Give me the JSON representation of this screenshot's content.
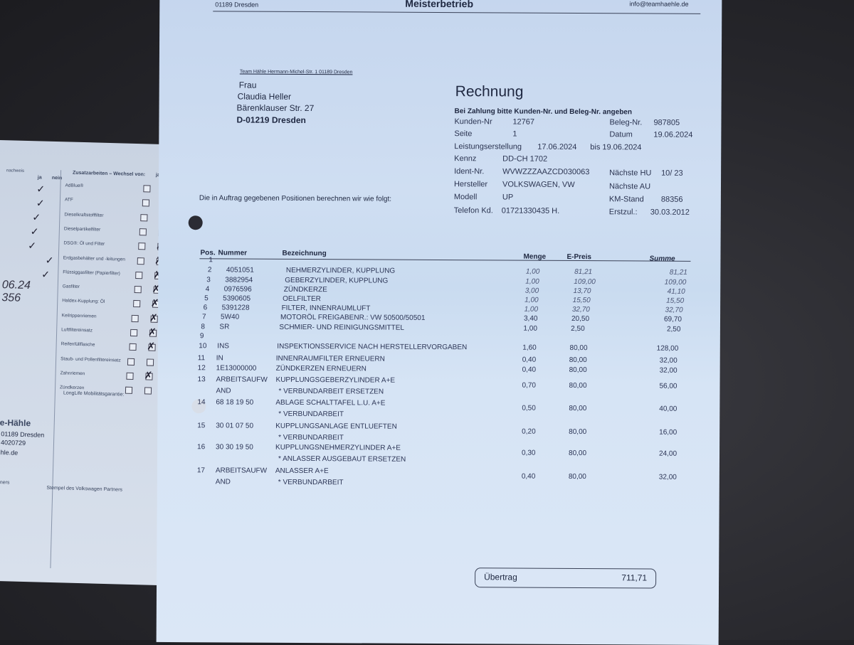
{
  "checklist_card": {
    "left_header_fragment": "nachweis",
    "left_columns": [
      "ja",
      "nein"
    ],
    "right_header": "Zusatzarbeiten – Wechsel von:",
    "right_column": "ja",
    "items": [
      "AdBlue®",
      "ATF",
      "Dieselkraftstofffilter",
      "Dieselpartikelfilter",
      "DSG®: Öl und Filter",
      "Erdgasbehälter und -leitungen",
      "Flüssiggasfilter (Papierfilter)",
      "Gasfilter",
      "Haldex-Kupplung: Öl",
      "Keilrippenriemen",
      "Luftfiltereinsatz",
      "Reifenfüllflasche",
      "Staub- und Pollenfiltereinsatz",
      "Zahnriemen",
      "Zündkerzen"
    ],
    "handwritten": [
      "06.24",
      "356"
    ],
    "longlife": "LongLife Mobilitätsgarantie:",
    "stamp_label": "Stempel des Volkswagen Partners",
    "stamp_brand": "e-Hähle",
    "stamp_lines": [
      "01189 Dresden",
      "4020729",
      "hle.de"
    ],
    "partners_fragment": "rtners"
  },
  "invoice": {
    "header": {
      "left": "01189 Dresden",
      "center": "Meisterbetrieb",
      "right": "info@teamhaehle.de"
    },
    "sender_line": "Team Hähle  Hermann-Michel-Str. 1  01189 Dresden",
    "recipient": [
      "Frau",
      "Claudia Heller",
      "Bärenklauser Str. 27",
      "D-01219 Dresden"
    ],
    "title": "Rechnung",
    "payment_note": "Bei Zahlung bitte Kunden-Nr. und Beleg-Nr. angeben",
    "fields": {
      "kunden_nr": {
        "label": "Kunden-Nr",
        "value": "12767"
      },
      "beleg_nr": {
        "label": "Beleg-Nr.",
        "value": "987805"
      },
      "seite": {
        "label": "Seite",
        "value": "1"
      },
      "datum": {
        "label": "Datum",
        "value": "19.06.2024"
      },
      "leistung": {
        "label": "Leistungserstellung",
        "value": "17.06.2024",
        "bis": "bis 19.06.2024"
      },
      "kennz": {
        "label": "Kennz",
        "value": "DD-CH 1702"
      },
      "ident": {
        "label": "Ident-Nr.",
        "value": "WVWZZZAAZCD030063"
      },
      "hu": {
        "label": "Nächste HU",
        "value": "10/ 23"
      },
      "hersteller": {
        "label": "Hersteller",
        "value": "VOLKSWAGEN, VW"
      },
      "au": {
        "label": "Nächste AU",
        "value": ""
      },
      "modell": {
        "label": "Modell",
        "value": "UP"
      },
      "km": {
        "label": "KM-Stand",
        "value": "88356"
      },
      "telefon": {
        "label": "Telefon Kd.",
        "value": "01721330435 H."
      },
      "erstzul": {
        "label": "Erstzul.:",
        "value": "30.03.2012"
      }
    },
    "intro": "Die in Auftrag gegebenen Positionen berechnen wir wie folgt:",
    "columns": {
      "pos": "Pos.",
      "nummer": "Nummer",
      "bezeichnung": "Bezeichnung",
      "menge": "Menge",
      "epreis": "E-Preis",
      "summe": "Summe"
    },
    "rows": [
      {
        "pos": "1",
        "nummer": "",
        "bez": "",
        "bez2": "",
        "nummer2": "",
        "menge": "",
        "epreis": "",
        "summe": ""
      },
      {
        "pos": "2",
        "nummer": "4051051",
        "bez": "NEHMERZYLINDER, KUPPLUNG",
        "menge": "1,00",
        "epreis": "81,21",
        "summe": "81,21"
      },
      {
        "pos": "3",
        "nummer": "3882954",
        "bez": "GEBERZYLINDER, KUPPLUNG",
        "menge": "1,00",
        "epreis": "109,00",
        "summe": "109,00"
      },
      {
        "pos": "4",
        "nummer": "0976596",
        "bez": "ZÜNDKERZE",
        "menge": "3,00",
        "epreis": "13,70",
        "summe": "41,10"
      },
      {
        "pos": "5",
        "nummer": "5390605",
        "bez": "OELFILTER",
        "menge": "1,00",
        "epreis": "15,50",
        "summe": "15,50"
      },
      {
        "pos": "6",
        "nummer": "5391228",
        "bez": "FILTER, INNENRAUMLUFT",
        "menge": "1,00",
        "epreis": "32,70",
        "summe": "32,70"
      },
      {
        "pos": "7",
        "nummer": "5W40",
        "bez": "MOTORÖL FREIGABENR.: VW 50500/50501",
        "menge": "3,40",
        "epreis": "20,50",
        "summe": "69,70"
      },
      {
        "pos": "8",
        "nummer": "SR",
        "bez": "SCHMIER- UND REINIGUNGSMITTEL",
        "menge": "1,00",
        "epreis": "2,50",
        "summe": "2,50"
      },
      {
        "pos": "9",
        "nummer": "",
        "bez": "",
        "menge": "",
        "epreis": "",
        "summe": ""
      },
      {
        "pos": "10",
        "nummer": "INS",
        "bez": "INSPEKTIONSSERVICE NACH HERSTELLERVORGABEN",
        "menge": "1,60",
        "epreis": "80,00",
        "summe": "128,00"
      },
      {
        "pos": "11",
        "nummer": "IN",
        "bez": "INNENRAUMFILTER ERNEUERN",
        "menge": "0,40",
        "epreis": "80,00",
        "summe": "32,00"
      },
      {
        "pos": "12",
        "nummer": "1E13000000",
        "bez": "ZÜNDKERZEN ERNEUERN",
        "menge": "0,40",
        "epreis": "80,00",
        "summe": "32,00"
      },
      {
        "pos": "13",
        "nummer": "ARBEITSAUFW",
        "bez": "KUPPLUNGSGEBERZYLINDER A+E",
        "nummer2": "AND",
        "bez2": "* VERBUNDARBEIT ERSETZEN",
        "menge": "0,70",
        "epreis": "80,00",
        "summe": "56,00"
      },
      {
        "pos": "14",
        "nummer": "68 18 19 50",
        "bez": "ABLAGE SCHALTTAFEL L.U. A+E",
        "bez2": "* VERBUNDARBEIT",
        "menge": "0,50",
        "epreis": "80,00",
        "summe": "40,00"
      },
      {
        "pos": "15",
        "nummer": "30 01 07 50",
        "bez": "KUPPLUNGSANLAGE ENTLUEFTEN",
        "bez2": "* VERBUNDARBEIT",
        "menge": "0,20",
        "epreis": "80,00",
        "summe": "16,00"
      },
      {
        "pos": "16",
        "nummer": "30 30 19 50",
        "bez": "KUPPLUNGSNEHMERZYLINDER A+E",
        "bez2": "* ANLASSER AUSGEBAUT ERSETZEN",
        "menge": "0,30",
        "epreis": "80,00",
        "summe": "24,00"
      },
      {
        "pos": "17",
        "nummer": "ARBEITSAUFW",
        "bez": "ANLASSER A+E",
        "nummer2": "AND",
        "bez2": "* VERBUNDARBEIT",
        "menge": "0,40",
        "epreis": "80,00",
        "summe": "32,00"
      }
    ],
    "ubertrag": {
      "label": "Übertrag",
      "value": "711,71"
    }
  }
}
